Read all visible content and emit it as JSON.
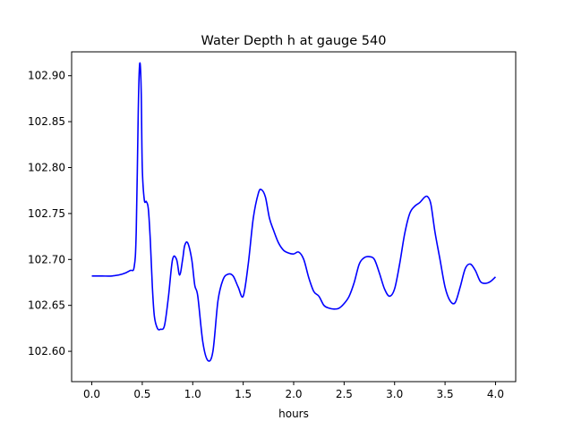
{
  "chart_data": {
    "type": "line",
    "title": "Water Depth h at gauge 540",
    "xlabel": "hours",
    "ylabel": "",
    "xlim": [
      -0.2,
      4.2
    ],
    "ylim": [
      102.567,
      102.926
    ],
    "grid": false,
    "x_ticks": [
      0.0,
      0.5,
      1.0,
      1.5,
      2.0,
      2.5,
      3.0,
      3.5,
      4.0
    ],
    "x_tick_labels": [
      "0.0",
      "0.5",
      "1.0",
      "1.5",
      "2.0",
      "2.5",
      "3.0",
      "3.5",
      "4.0"
    ],
    "y_ticks": [
      102.6,
      102.65,
      102.7,
      102.75,
      102.8,
      102.85,
      102.9
    ],
    "y_tick_labels": [
      "102.60",
      "102.65",
      "102.70",
      "102.75",
      "102.80",
      "102.85",
      "102.90"
    ],
    "series": [
      {
        "color": "#0000ff",
        "x": [
          0.0,
          0.1,
          0.2,
          0.3,
          0.38,
          0.42,
          0.44,
          0.46,
          0.47,
          0.48,
          0.49,
          0.5,
          0.52,
          0.54,
          0.56,
          0.58,
          0.6,
          0.62,
          0.65,
          0.68,
          0.72,
          0.76,
          0.8,
          0.84,
          0.87,
          0.9,
          0.92,
          0.95,
          0.99,
          1.02,
          1.05,
          1.1,
          1.15,
          1.2,
          1.25,
          1.3,
          1.35,
          1.4,
          1.45,
          1.5,
          1.55,
          1.6,
          1.65,
          1.68,
          1.72,
          1.76,
          1.8,
          1.85,
          1.9,
          1.95,
          2.0,
          2.05,
          2.1,
          2.15,
          2.2,
          2.25,
          2.3,
          2.35,
          2.4,
          2.45,
          2.5,
          2.55,
          2.6,
          2.65,
          2.7,
          2.75,
          2.8,
          2.85,
          2.9,
          2.95,
          3.0,
          3.05,
          3.1,
          3.15,
          3.2,
          3.25,
          3.3,
          3.33,
          3.36,
          3.4,
          3.45,
          3.5,
          3.55,
          3.6,
          3.65,
          3.7,
          3.75,
          3.8,
          3.85,
          3.9,
          3.95,
          4.0
        ],
        "y": [
          102.682,
          102.682,
          102.682,
          102.684,
          102.688,
          102.692,
          102.73,
          102.86,
          102.905,
          102.912,
          102.88,
          102.8,
          102.765,
          102.763,
          102.755,
          102.72,
          102.67,
          102.638,
          102.625,
          102.624,
          102.628,
          102.66,
          102.7,
          102.7,
          102.683,
          102.7,
          102.715,
          102.718,
          102.7,
          102.672,
          102.66,
          102.61,
          102.59,
          102.6,
          102.655,
          102.678,
          102.684,
          102.682,
          102.67,
          102.66,
          102.695,
          102.745,
          102.772,
          102.776,
          102.768,
          102.745,
          102.732,
          102.718,
          102.71,
          102.707,
          102.706,
          102.708,
          102.7,
          102.68,
          102.665,
          102.66,
          102.65,
          102.647,
          102.646,
          102.647,
          102.652,
          102.66,
          102.675,
          102.695,
          102.702,
          102.703,
          102.7,
          102.685,
          102.668,
          102.66,
          102.668,
          102.695,
          102.728,
          102.75,
          102.758,
          102.762,
          102.768,
          102.768,
          102.76,
          102.73,
          102.7,
          102.67,
          102.655,
          102.653,
          102.67,
          102.69,
          102.695,
          102.688,
          102.676,
          102.674,
          102.676,
          102.681
        ]
      }
    ]
  }
}
